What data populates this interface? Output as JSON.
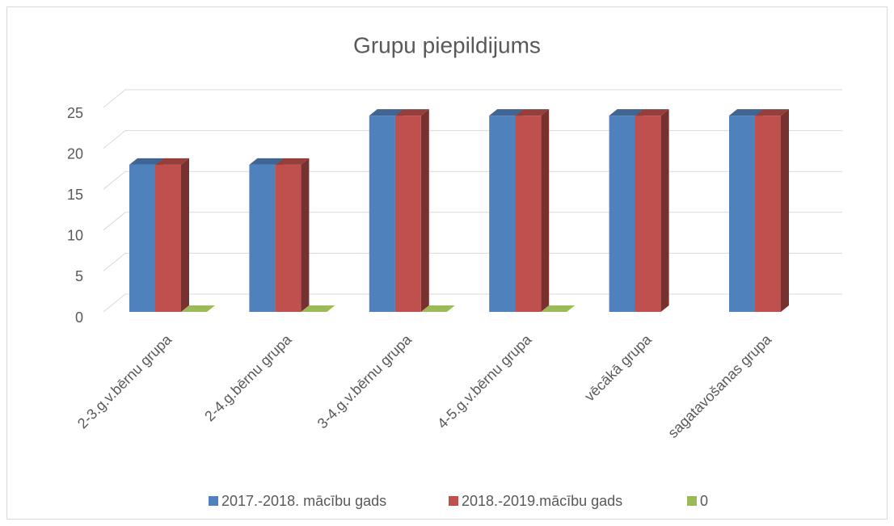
{
  "chart_data": {
    "type": "bar3d",
    "title": "Grupu piepildijums",
    "categories": [
      "2-3.g.v.bērnu grupa",
      "2-4.g.bērnu grupa",
      "3-4.g.v.bērnu grupa",
      "4-5.g.v.bērnu grupa",
      "vēcākā grupa",
      "sagatavošanas grupa"
    ],
    "series": [
      {
        "name": "2017.-2018. mācību gads",
        "color": "#4f81bd",
        "values": [
          18,
          18,
          24,
          24,
          24,
          24
        ]
      },
      {
        "name": "2018.-2019.mācību gads",
        "color": "#c0504d",
        "values": [
          18,
          18,
          24,
          24,
          24,
          24
        ]
      },
      {
        "name": "0",
        "color": "#9bbb59",
        "values": [
          0,
          0,
          0,
          0,
          null,
          null
        ]
      }
    ],
    "ylim": [
      0,
      25
    ],
    "yticks": [
      0,
      5,
      10,
      15,
      20,
      25
    ],
    "grid": true,
    "legend": "bottom"
  }
}
